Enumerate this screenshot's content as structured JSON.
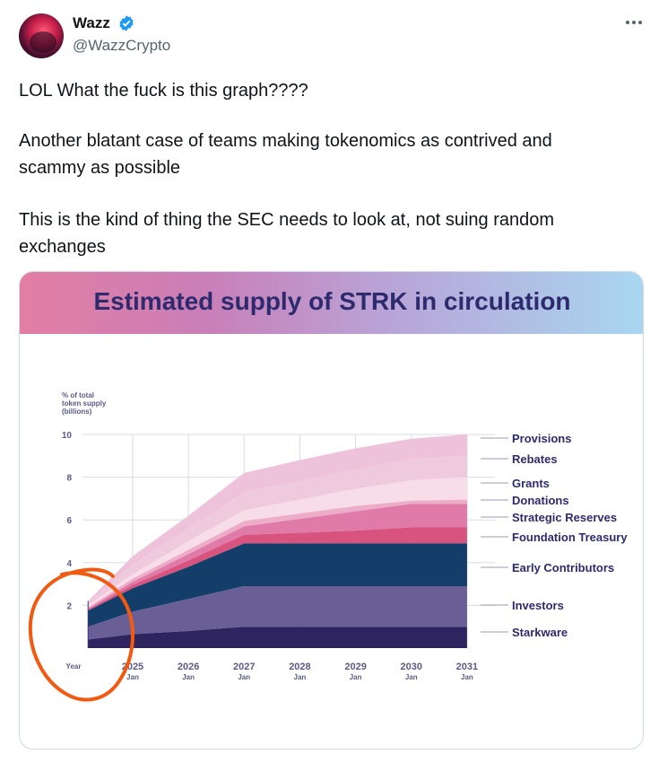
{
  "author": {
    "name": "Wazz",
    "handle": "@WazzCrypto"
  },
  "icons": {
    "verified": "verified-badge-icon",
    "more": "more-dots-icon"
  },
  "tweet": {
    "line1": "LOL What the fuck is this graph????",
    "line2a": "Another blatant case of teams making tokenomics as contrived and",
    "line2b": "scammy as possible",
    "line3a": "This is the kind of thing the SEC needs to look at, not suing random",
    "line3b": "exchanges"
  },
  "colors": {
    "verified": "#1d9bf0",
    "annotation": "#f25a12"
  },
  "chart_data": {
    "type": "area",
    "title": "Estimated supply of STRK in circulation",
    "ylabel": [
      "% of total",
      "token supply",
      "(billions)"
    ],
    "xlabel": "Year",
    "ylim": [
      0,
      10
    ],
    "yticks": [
      2,
      4,
      6,
      8,
      10
    ],
    "x": [
      2024.2,
      2025,
      2026,
      2027,
      2028,
      2029,
      2030,
      2031
    ],
    "xticks": [
      {
        "year": "2025",
        "month": "Jan",
        "x": 2025
      },
      {
        "year": "2026",
        "month": "Jan",
        "x": 2026
      },
      {
        "year": "2027",
        "month": "Jan",
        "x": 2027
      },
      {
        "year": "2028",
        "month": "Jan",
        "x": 2028
      },
      {
        "year": "2029",
        "month": "Jan",
        "x": 2029
      },
      {
        "year": "2030",
        "month": "Jan",
        "x": 2030
      },
      {
        "year": "2031",
        "month": "Jan",
        "x": 2031
      }
    ],
    "xrange": [
      2024.1,
      2031.5
    ],
    "series": [
      {
        "name": "Starkware",
        "color": "#2e2560",
        "cum": [
          0.4,
          0.65,
          0.8,
          1.0,
          1.0,
          1.0,
          1.0,
          1.0
        ]
      },
      {
        "name": "Investors",
        "color": "#6a5e97",
        "cum": [
          1.0,
          1.7,
          2.3,
          2.9,
          2.9,
          2.9,
          2.9,
          2.9
        ]
      },
      {
        "name": "Early Contributors",
        "color": "#143e6a",
        "cum": [
          1.75,
          2.8,
          3.8,
          4.9,
          4.9,
          4.9,
          4.9,
          4.9
        ]
      },
      {
        "name": "Foundation Treasury",
        "color": "#d9537f",
        "cum": [
          1.8,
          2.95,
          4.1,
          5.3,
          5.4,
          5.5,
          5.65,
          5.65
        ]
      },
      {
        "name": "Strategic Reserves",
        "color": "#e07aa8",
        "cum": [
          1.85,
          3.1,
          4.4,
          5.7,
          6.05,
          6.4,
          6.75,
          6.75
        ]
      },
      {
        "name": "Donations",
        "color": "#edadc8",
        "cum": [
          1.9,
          3.25,
          4.6,
          5.95,
          6.3,
          6.65,
          6.9,
          6.95
        ]
      },
      {
        "name": "Grants",
        "color": "#f7dde8",
        "cum": [
          2.0,
          3.45,
          5.0,
          6.45,
          6.95,
          7.45,
          7.85,
          8.0
        ]
      },
      {
        "name": "Rebates",
        "color": "#efcadd",
        "cum": [
          2.1,
          3.9,
          5.6,
          7.3,
          7.8,
          8.35,
          8.85,
          9.0
        ]
      },
      {
        "name": "Provisions",
        "color": "#efc2dc",
        "cum": [
          2.2,
          4.3,
          6.2,
          8.2,
          8.8,
          9.35,
          9.8,
          10.0
        ]
      }
    ],
    "legend_placement": "right",
    "grid": true
  }
}
